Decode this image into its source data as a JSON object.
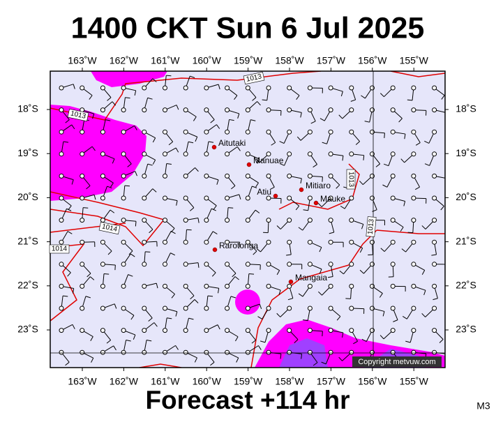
{
  "title": "1400 CKT Sun 6 Jul 2025",
  "footer": "Forecast +114 hr",
  "model": "M3",
  "copyright": "Copyright metvuw.com",
  "lon_labels": [
    "163˚W",
    "162˚W",
    "161˚W",
    "160˚W",
    "159˚W",
    "158˚W",
    "157˚W",
    "156˚W",
    "155˚W"
  ],
  "lat_labels": [
    "18˚S",
    "19˚S",
    "20˚S",
    "21˚S",
    "22˚S",
    "23˚S"
  ],
  "places": [
    {
      "label": "Aitutaki"
    },
    {
      "label": "Manuae"
    },
    {
      "label": "Atiu"
    },
    {
      "label": "Mitiaro"
    },
    {
      "label": "Mauke"
    },
    {
      "label": "Rarotonga"
    },
    {
      "label": "Mangaia"
    }
  ],
  "isobar_labels": [
    "1013",
    "1013",
    "1014",
    "1014",
    "1013",
    "1013"
  ]
}
